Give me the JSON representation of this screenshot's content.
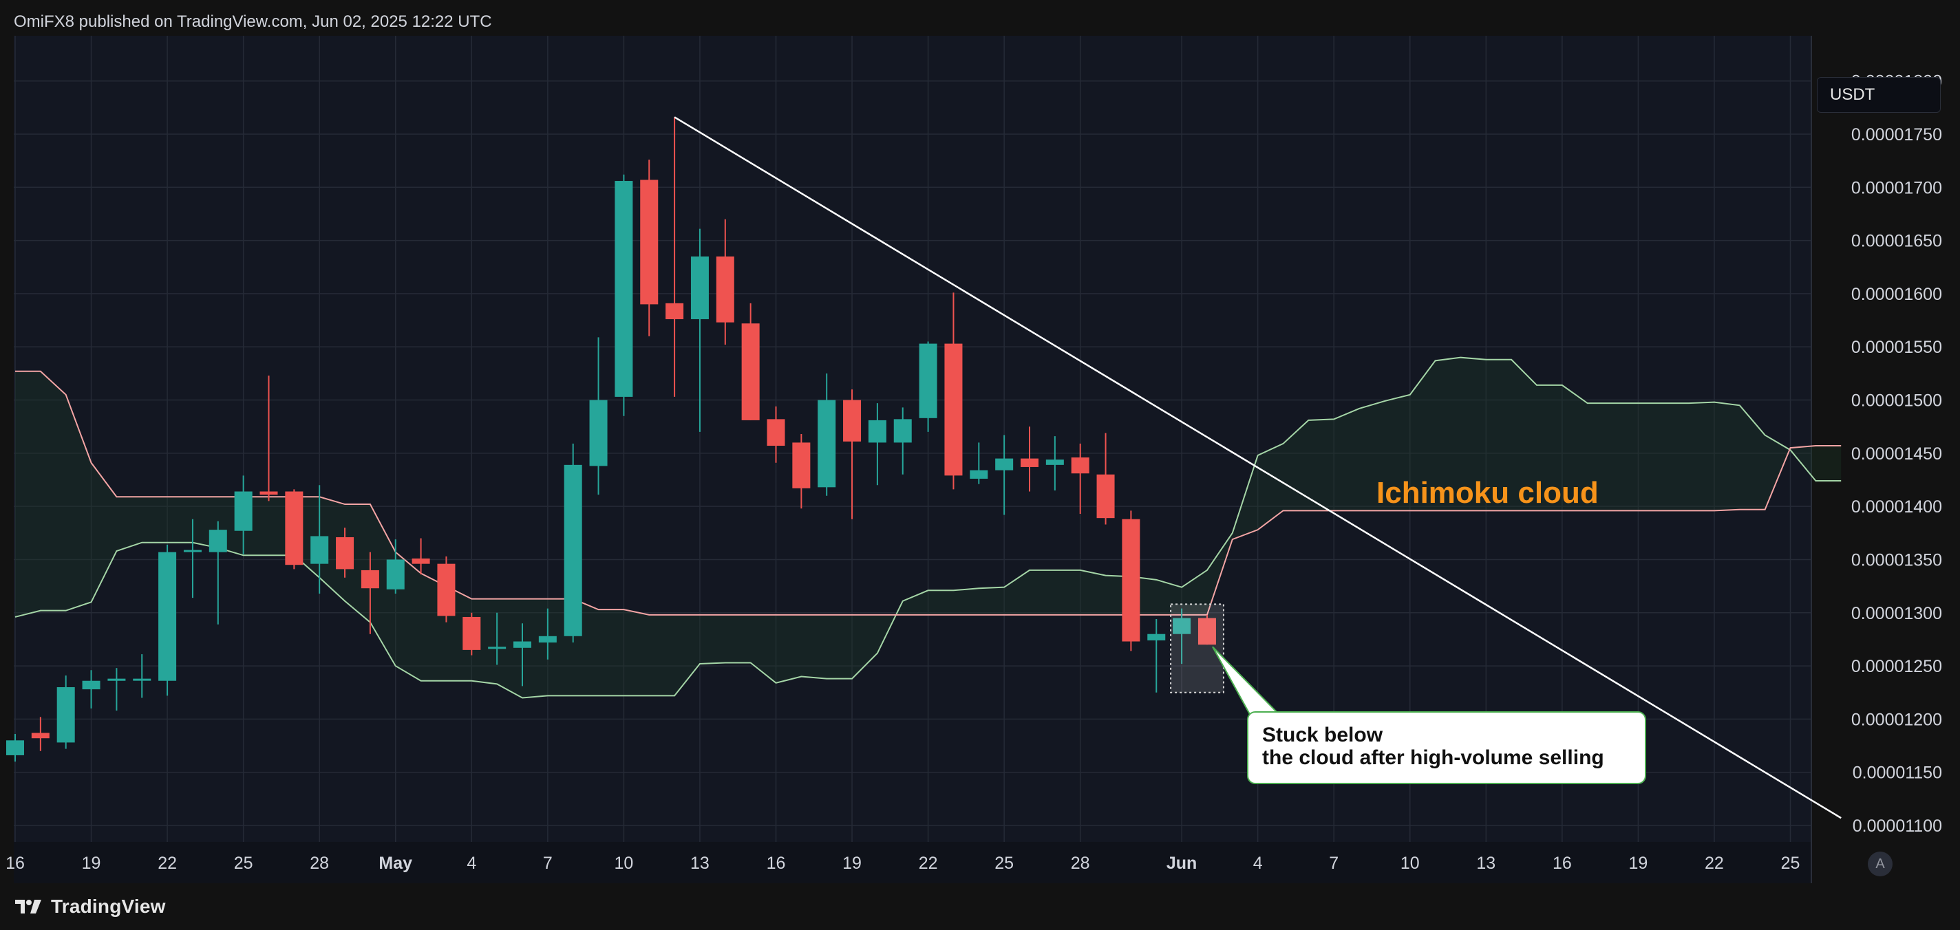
{
  "header": {
    "publisher_line": "OmiFX8 published on TradingView.com, Jun 02, 2025 12:22 UTC"
  },
  "price_axis": {
    "currency": "USDT",
    "auto_label": "A",
    "ticks": [
      "0.00001800",
      "0.00001750",
      "0.00001700",
      "0.00001650",
      "0.00001600",
      "0.00001550",
      "0.00001500",
      "0.00001450",
      "0.00001400",
      "0.00001350",
      "0.00001300",
      "0.00001250",
      "0.00001200",
      "0.00001150",
      "0.00001100"
    ]
  },
  "footer": {
    "brand": "TradingView"
  },
  "annotations": {
    "callout_line1": "Stuck below",
    "callout_line2": "the cloud after high-volume selling",
    "cloud_label": "Ichimoku cloud"
  },
  "colors": {
    "background": "#121212",
    "plot_bg": "#131722",
    "grid": "#252a36",
    "bull": "#26a69a",
    "bear": "#ef5350",
    "span_a": "#a5d6a7",
    "span_b": "#f4a5a5",
    "cloud_fill": "#1c3a28",
    "trendline": "#ffffff",
    "cloud_text": "#f7931a"
  },
  "chart_data": {
    "type": "candlestick",
    "title": "",
    "ylim": [
      1.085e-05,
      1.8e-05
    ],
    "x_ticks": [
      {
        "label": "16",
        "date": "2025-04-16"
      },
      {
        "label": "19",
        "date": "2025-04-19"
      },
      {
        "label": "22",
        "date": "2025-04-22"
      },
      {
        "label": "25",
        "date": "2025-04-25"
      },
      {
        "label": "28",
        "date": "2025-04-28"
      },
      {
        "label": "May",
        "date": "2025-05-01",
        "bold": true
      },
      {
        "label": "4",
        "date": "2025-05-04"
      },
      {
        "label": "7",
        "date": "2025-05-07"
      },
      {
        "label": "10",
        "date": "2025-05-10"
      },
      {
        "label": "13",
        "date": "2025-05-13"
      },
      {
        "label": "16",
        "date": "2025-05-16"
      },
      {
        "label": "19",
        "date": "2025-05-19"
      },
      {
        "label": "22",
        "date": "2025-05-22"
      },
      {
        "label": "25",
        "date": "2025-05-25"
      },
      {
        "label": "28",
        "date": "2025-05-28"
      },
      {
        "label": "Jun",
        "date": "2025-06-01",
        "bold": true
      },
      {
        "label": "4",
        "date": "2025-06-04"
      },
      {
        "label": "7",
        "date": "2025-06-07"
      },
      {
        "label": "10",
        "date": "2025-06-10"
      },
      {
        "label": "13",
        "date": "2025-06-13"
      },
      {
        "label": "16",
        "date": "2025-06-16"
      },
      {
        "label": "19",
        "date": "2025-06-19"
      },
      {
        "label": "22",
        "date": "2025-06-22"
      },
      {
        "label": "25",
        "date": "2025-06-25"
      }
    ],
    "candles": [
      {
        "d": "2025-04-16",
        "o": 1.166,
        "h": 1.186,
        "l": 1.16,
        "c": 1.18
      },
      {
        "d": "2025-04-17",
        "o": 1.187,
        "h": 1.202,
        "l": 1.17,
        "c": 1.182
      },
      {
        "d": "2025-04-18",
        "o": 1.178,
        "h": 1.241,
        "l": 1.172,
        "c": 1.23
      },
      {
        "d": "2025-04-19",
        "o": 1.228,
        "h": 1.246,
        "l": 1.21,
        "c": 1.236
      },
      {
        "d": "2025-04-20",
        "o": 1.236,
        "h": 1.248,
        "l": 1.208,
        "c": 1.238
      },
      {
        "d": "2025-04-21",
        "o": 1.237,
        "h": 1.261,
        "l": 1.22,
        "c": 1.238
      },
      {
        "d": "2025-04-22",
        "o": 1.236,
        "h": 1.364,
        "l": 1.222,
        "c": 1.357
      },
      {
        "d": "2025-04-23",
        "o": 1.358,
        "h": 1.388,
        "l": 1.314,
        "c": 1.359
      },
      {
        "d": "2025-04-24",
        "o": 1.357,
        "h": 1.386,
        "l": 1.289,
        "c": 1.378
      },
      {
        "d": "2025-04-25",
        "o": 1.377,
        "h": 1.429,
        "l": 1.355,
        "c": 1.414
      },
      {
        "d": "2025-04-26",
        "o": 1.414,
        "h": 1.523,
        "l": 1.405,
        "c": 1.411
      },
      {
        "d": "2025-04-27",
        "o": 1.414,
        "h": 1.416,
        "l": 1.341,
        "c": 1.345
      },
      {
        "d": "2025-04-28",
        "o": 1.346,
        "h": 1.42,
        "l": 1.318,
        "c": 1.372
      },
      {
        "d": "2025-04-29",
        "o": 1.371,
        "h": 1.38,
        "l": 1.333,
        "c": 1.341
      },
      {
        "d": "2025-04-30",
        "o": 1.34,
        "h": 1.357,
        "l": 1.28,
        "c": 1.323
      },
      {
        "d": "2025-05-01",
        "o": 1.322,
        "h": 1.369,
        "l": 1.318,
        "c": 1.35
      },
      {
        "d": "2025-05-02",
        "o": 1.351,
        "h": 1.37,
        "l": 1.336,
        "c": 1.346
      },
      {
        "d": "2025-05-03",
        "o": 1.346,
        "h": 1.353,
        "l": 1.291,
        "c": 1.297
      },
      {
        "d": "2025-05-04",
        "o": 1.296,
        "h": 1.3,
        "l": 1.26,
        "c": 1.265
      },
      {
        "d": "2025-05-05",
        "o": 1.266,
        "h": 1.3,
        "l": 1.251,
        "c": 1.268
      },
      {
        "d": "2025-05-06",
        "o": 1.267,
        "h": 1.29,
        "l": 1.231,
        "c": 1.273
      },
      {
        "d": "2025-05-07",
        "o": 1.272,
        "h": 1.304,
        "l": 1.256,
        "c": 1.278
      },
      {
        "d": "2025-05-08",
        "o": 1.278,
        "h": 1.459,
        "l": 1.272,
        "c": 1.439
      },
      {
        "d": "2025-05-09",
        "o": 1.438,
        "h": 1.559,
        "l": 1.411,
        "c": 1.5
      },
      {
        "d": "2025-05-10",
        "o": 1.503,
        "h": 1.712,
        "l": 1.485,
        "c": 1.706
      },
      {
        "d": "2025-05-11",
        "o": 1.707,
        "h": 1.726,
        "l": 1.56,
        "c": 1.59
      },
      {
        "d": "2025-05-12",
        "o": 1.591,
        "h": 1.766,
        "l": 1.503,
        "c": 1.576
      },
      {
        "d": "2025-05-13",
        "o": 1.576,
        "h": 1.661,
        "l": 1.47,
        "c": 1.635
      },
      {
        "d": "2025-05-14",
        "o": 1.635,
        "h": 1.67,
        "l": 1.552,
        "c": 1.573
      },
      {
        "d": "2025-05-15",
        "o": 1.572,
        "h": 1.591,
        "l": 1.481,
        "c": 1.481
      },
      {
        "d": "2025-05-16",
        "o": 1.482,
        "h": 1.494,
        "l": 1.441,
        "c": 1.457
      },
      {
        "d": "2025-05-17",
        "o": 1.46,
        "h": 1.468,
        "l": 1.398,
        "c": 1.417
      },
      {
        "d": "2025-05-18",
        "o": 1.418,
        "h": 1.525,
        "l": 1.41,
        "c": 1.5
      },
      {
        "d": "2025-05-19",
        "o": 1.5,
        "h": 1.51,
        "l": 1.388,
        "c": 1.461
      },
      {
        "d": "2025-05-20",
        "o": 1.46,
        "h": 1.497,
        "l": 1.42,
        "c": 1.481
      },
      {
        "d": "2025-05-21",
        "o": 1.46,
        "h": 1.493,
        "l": 1.43,
        "c": 1.482
      },
      {
        "d": "2025-05-22",
        "o": 1.483,
        "h": 1.555,
        "l": 1.47,
        "c": 1.553
      },
      {
        "d": "2025-05-23",
        "o": 1.553,
        "h": 1.601,
        "l": 1.416,
        "c": 1.429
      },
      {
        "d": "2025-05-24",
        "o": 1.426,
        "h": 1.46,
        "l": 1.421,
        "c": 1.434
      },
      {
        "d": "2025-05-25",
        "o": 1.434,
        "h": 1.467,
        "l": 1.392,
        "c": 1.445
      },
      {
        "d": "2025-05-26",
        "o": 1.445,
        "h": 1.475,
        "l": 1.414,
        "c": 1.437
      },
      {
        "d": "2025-05-27",
        "o": 1.439,
        "h": 1.466,
        "l": 1.415,
        "c": 1.444
      },
      {
        "d": "2025-05-28",
        "o": 1.446,
        "h": 1.459,
        "l": 1.393,
        "c": 1.431
      },
      {
        "d": "2025-05-29",
        "o": 1.43,
        "h": 1.469,
        "l": 1.383,
        "c": 1.389
      },
      {
        "d": "2025-05-30",
        "o": 1.388,
        "h": 1.396,
        "l": 1.264,
        "c": 1.273
      },
      {
        "d": "2025-05-31",
        "o": 1.274,
        "h": 1.294,
        "l": 1.225,
        "c": 1.28
      },
      {
        "d": "2025-06-01",
        "o": 1.28,
        "h": 1.304,
        "l": 1.252,
        "c": 1.295
      },
      {
        "d": "2025-06-02",
        "o": 1.295,
        "h": 1.298,
        "l": 1.27,
        "c": 1.27
      }
    ],
    "ichimoku_span_a": [
      {
        "d": "2025-04-16",
        "v": 1.296
      },
      {
        "d": "2025-04-17",
        "v": 1.302
      },
      {
        "d": "2025-04-18",
        "v": 1.302
      },
      {
        "d": "2025-04-19",
        "v": 1.31
      },
      {
        "d": "2025-04-20",
        "v": 1.358
      },
      {
        "d": "2025-04-21",
        "v": 1.366
      },
      {
        "d": "2025-04-22",
        "v": 1.366
      },
      {
        "d": "2025-04-23",
        "v": 1.366
      },
      {
        "d": "2025-04-24",
        "v": 1.361
      },
      {
        "d": "2025-04-25",
        "v": 1.354
      },
      {
        "d": "2025-04-26",
        "v": 1.354
      },
      {
        "d": "2025-04-27",
        "v": 1.354
      },
      {
        "d": "2025-04-28",
        "v": 1.333
      },
      {
        "d": "2025-04-29",
        "v": 1.311
      },
      {
        "d": "2025-04-30",
        "v": 1.291
      },
      {
        "d": "2025-05-01",
        "v": 1.25
      },
      {
        "d": "2025-05-02",
        "v": 1.236
      },
      {
        "d": "2025-05-03",
        "v": 1.236
      },
      {
        "d": "2025-05-04",
        "v": 1.236
      },
      {
        "d": "2025-05-05",
        "v": 1.233
      },
      {
        "d": "2025-05-06",
        "v": 1.22
      },
      {
        "d": "2025-05-07",
        "v": 1.222
      },
      {
        "d": "2025-05-08",
        "v": 1.222
      },
      {
        "d": "2025-05-09",
        "v": 1.222
      },
      {
        "d": "2025-05-10",
        "v": 1.222
      },
      {
        "d": "2025-05-11",
        "v": 1.222
      },
      {
        "d": "2025-05-12",
        "v": 1.222
      },
      {
        "d": "2025-05-13",
        "v": 1.252
      },
      {
        "d": "2025-05-14",
        "v": 1.253
      },
      {
        "d": "2025-05-15",
        "v": 1.253
      },
      {
        "d": "2025-05-16",
        "v": 1.234
      },
      {
        "d": "2025-05-17",
        "v": 1.24
      },
      {
        "d": "2025-05-18",
        "v": 1.238
      },
      {
        "d": "2025-05-19",
        "v": 1.238
      },
      {
        "d": "2025-05-20",
        "v": 1.262
      },
      {
        "d": "2025-05-21",
        "v": 1.311
      },
      {
        "d": "2025-05-22",
        "v": 1.321
      },
      {
        "d": "2025-05-23",
        "v": 1.321
      },
      {
        "d": "2025-05-24",
        "v": 1.323
      },
      {
        "d": "2025-05-25",
        "v": 1.324
      },
      {
        "d": "2025-05-26",
        "v": 1.34
      },
      {
        "d": "2025-05-27",
        "v": 1.34
      },
      {
        "d": "2025-05-28",
        "v": 1.34
      },
      {
        "d": "2025-05-29",
        "v": 1.335
      },
      {
        "d": "2025-05-30",
        "v": 1.334
      },
      {
        "d": "2025-05-31",
        "v": 1.331
      },
      {
        "d": "2025-06-01",
        "v": 1.324
      },
      {
        "d": "2025-06-02",
        "v": 1.34
      },
      {
        "d": "2025-06-03",
        "v": 1.375
      },
      {
        "d": "2025-06-04",
        "v": 1.448
      },
      {
        "d": "2025-06-05",
        "v": 1.459
      },
      {
        "d": "2025-06-06",
        "v": 1.481
      },
      {
        "d": "2025-06-07",
        "v": 1.482
      },
      {
        "d": "2025-06-08",
        "v": 1.492
      },
      {
        "d": "2025-06-09",
        "v": 1.499
      },
      {
        "d": "2025-06-10",
        "v": 1.505
      },
      {
        "d": "2025-06-11",
        "v": 1.537
      },
      {
        "d": "2025-06-12",
        "v": 1.54
      },
      {
        "d": "2025-06-13",
        "v": 1.538
      },
      {
        "d": "2025-06-14",
        "v": 1.538
      },
      {
        "d": "2025-06-15",
        "v": 1.514
      },
      {
        "d": "2025-06-16",
        "v": 1.514
      },
      {
        "d": "2025-06-17",
        "v": 1.497
      },
      {
        "d": "2025-06-18",
        "v": 1.497
      },
      {
        "d": "2025-06-19",
        "v": 1.497
      },
      {
        "d": "2025-06-20",
        "v": 1.497
      },
      {
        "d": "2025-06-21",
        "v": 1.497
      },
      {
        "d": "2025-06-22",
        "v": 1.498
      },
      {
        "d": "2025-06-23",
        "v": 1.495
      },
      {
        "d": "2025-06-24",
        "v": 1.467
      },
      {
        "d": "2025-06-25",
        "v": 1.453
      },
      {
        "d": "2025-06-26",
        "v": 1.424
      },
      {
        "d": "2025-06-27",
        "v": 1.424
      }
    ],
    "ichimoku_span_b": [
      {
        "d": "2025-04-16",
        "v": 1.527
      },
      {
        "d": "2025-04-17",
        "v": 1.527
      },
      {
        "d": "2025-04-18",
        "v": 1.505
      },
      {
        "d": "2025-04-19",
        "v": 1.441
      },
      {
        "d": "2025-04-20",
        "v": 1.409
      },
      {
        "d": "2025-04-21",
        "v": 1.409
      },
      {
        "d": "2025-04-22",
        "v": 1.409
      },
      {
        "d": "2025-04-23",
        "v": 1.409
      },
      {
        "d": "2025-04-24",
        "v": 1.409
      },
      {
        "d": "2025-04-25",
        "v": 1.409
      },
      {
        "d": "2025-04-26",
        "v": 1.409
      },
      {
        "d": "2025-04-27",
        "v": 1.409
      },
      {
        "d": "2025-04-28",
        "v": 1.409
      },
      {
        "d": "2025-04-29",
        "v": 1.402
      },
      {
        "d": "2025-04-30",
        "v": 1.402
      },
      {
        "d": "2025-05-01",
        "v": 1.357
      },
      {
        "d": "2025-05-02",
        "v": 1.337
      },
      {
        "d": "2025-05-03",
        "v": 1.325
      },
      {
        "d": "2025-05-04",
        "v": 1.313
      },
      {
        "d": "2025-05-05",
        "v": 1.313
      },
      {
        "d": "2025-05-06",
        "v": 1.313
      },
      {
        "d": "2025-05-07",
        "v": 1.313
      },
      {
        "d": "2025-05-08",
        "v": 1.313
      },
      {
        "d": "2025-05-09",
        "v": 1.303
      },
      {
        "d": "2025-05-10",
        "v": 1.303
      },
      {
        "d": "2025-05-11",
        "v": 1.298
      },
      {
        "d": "2025-05-12",
        "v": 1.298
      },
      {
        "d": "2025-05-13",
        "v": 1.298
      },
      {
        "d": "2025-05-14",
        "v": 1.298
      },
      {
        "d": "2025-05-15",
        "v": 1.298
      },
      {
        "d": "2025-05-16",
        "v": 1.298
      },
      {
        "d": "2025-05-17",
        "v": 1.298
      },
      {
        "d": "2025-05-18",
        "v": 1.298
      },
      {
        "d": "2025-05-19",
        "v": 1.298
      },
      {
        "d": "2025-05-20",
        "v": 1.298
      },
      {
        "d": "2025-05-21",
        "v": 1.298
      },
      {
        "d": "2025-05-22",
        "v": 1.298
      },
      {
        "d": "2025-05-23",
        "v": 1.298
      },
      {
        "d": "2025-05-24",
        "v": 1.298
      },
      {
        "d": "2025-05-25",
        "v": 1.298
      },
      {
        "d": "2025-05-26",
        "v": 1.298
      },
      {
        "d": "2025-05-27",
        "v": 1.298
      },
      {
        "d": "2025-05-28",
        "v": 1.298
      },
      {
        "d": "2025-05-29",
        "v": 1.298
      },
      {
        "d": "2025-05-30",
        "v": 1.298
      },
      {
        "d": "2025-05-31",
        "v": 1.298
      },
      {
        "d": "2025-06-01",
        "v": 1.298
      },
      {
        "d": "2025-06-02",
        "v": 1.298
      },
      {
        "d": "2025-06-03",
        "v": 1.369
      },
      {
        "d": "2025-06-04",
        "v": 1.378
      },
      {
        "d": "2025-06-05",
        "v": 1.396
      },
      {
        "d": "2025-06-06",
        "v": 1.396
      },
      {
        "d": "2025-06-07",
        "v": 1.396
      },
      {
        "d": "2025-06-08",
        "v": 1.396
      },
      {
        "d": "2025-06-09",
        "v": 1.396
      },
      {
        "d": "2025-06-10",
        "v": 1.396
      },
      {
        "d": "2025-06-11",
        "v": 1.396
      },
      {
        "d": "2025-06-12",
        "v": 1.396
      },
      {
        "d": "2025-06-13",
        "v": 1.396
      },
      {
        "d": "2025-06-14",
        "v": 1.396
      },
      {
        "d": "2025-06-15",
        "v": 1.396
      },
      {
        "d": "2025-06-16",
        "v": 1.396
      },
      {
        "d": "2025-06-17",
        "v": 1.396
      },
      {
        "d": "2025-06-18",
        "v": 1.396
      },
      {
        "d": "2025-06-19",
        "v": 1.396
      },
      {
        "d": "2025-06-20",
        "v": 1.396
      },
      {
        "d": "2025-06-21",
        "v": 1.396
      },
      {
        "d": "2025-06-22",
        "v": 1.396
      },
      {
        "d": "2025-06-23",
        "v": 1.397
      },
      {
        "d": "2025-06-24",
        "v": 1.397
      },
      {
        "d": "2025-06-25",
        "v": 1.455
      },
      {
        "d": "2025-06-26",
        "v": 1.457
      },
      {
        "d": "2025-06-27",
        "v": 1.457
      }
    ],
    "trendline": {
      "from": {
        "d": "2025-05-12",
        "v": 1.766
      },
      "to": {
        "d": "2025-06-27",
        "v": 1.107
      }
    },
    "highlight_box": {
      "from": {
        "d": "2025-06-01",
        "v": 1.308
      },
      "to": {
        "d": "2025-06-02",
        "v": 1.225
      }
    },
    "value_unit_note": "values in units of 0.00001 USDT"
  }
}
